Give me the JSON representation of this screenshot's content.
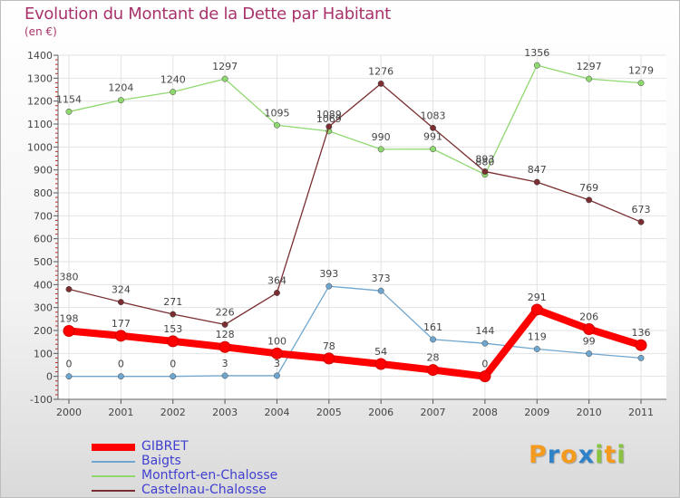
{
  "chart_data": {
    "type": "line",
    "title": "Evolution du Montant de la Dette par Habitant",
    "subtitle": "(en €)",
    "categories": [
      "2000",
      "2001",
      "2002",
      "2003",
      "2004",
      "2005",
      "2006",
      "2007",
      "2008",
      "2009",
      "2010",
      "2011"
    ],
    "ylim": [
      -100,
      1400
    ],
    "yticks": [
      "-100",
      "0",
      "100",
      "200",
      "300",
      "400",
      "500",
      "600",
      "700",
      "800",
      "900",
      "1000",
      "1100",
      "1200",
      "1300",
      "1400"
    ],
    "grid": true,
    "legend_position": "bottom-left",
    "series": [
      {
        "name": "GIBRET",
        "color": "#ff0000",
        "values": [
          198,
          177,
          153,
          128,
          100,
          78,
          54,
          28,
          0,
          291,
          206,
          136
        ]
      },
      {
        "name": "Baigts",
        "color": "#6fa6cf",
        "values": [
          0,
          0,
          0,
          3,
          3,
          393,
          373,
          161,
          144,
          119,
          99,
          80
        ]
      },
      {
        "name": "Montfort-en-Chalosse",
        "color": "#8fd86f",
        "values": [
          1154,
          1204,
          1240,
          1297,
          1095,
          1069,
          990,
          991,
          880,
          1356,
          1297,
          1279
        ]
      },
      {
        "name": "Castelnau-Chalosse",
        "color": "#7a2e32",
        "values": [
          380,
          324,
          271,
          226,
          364,
          1089,
          1276,
          1083,
          893,
          847,
          769,
          673
        ]
      }
    ],
    "data_labels": [
      [
        "198",
        "177",
        "153",
        "128",
        "100",
        "78",
        "54",
        "28",
        "0",
        "291",
        "206",
        "136"
      ],
      [
        "0",
        "0",
        "0",
        "3",
        "3",
        "393",
        "373",
        "161",
        "144",
        "119",
        "99",
        ""
      ],
      [
        "1154",
        "1204",
        "1240",
        "1297",
        "1095",
        "1069",
        "990",
        "991",
        "880",
        "1356",
        "1297",
        "1279"
      ],
      [
        "380",
        "324",
        "271",
        "226",
        "364",
        "1089",
        "1276",
        "1083",
        "893",
        "847",
        "769",
        "673"
      ]
    ]
  },
  "logo": {
    "letters": [
      "P",
      "r",
      "o",
      "x",
      "i",
      "t",
      "i"
    ],
    "colors": [
      "#f49a1e",
      "#2f82c8",
      "#f49a1e",
      "#2f82c8",
      "#88c23f",
      "#f49a1e",
      "#88c23f"
    ]
  }
}
